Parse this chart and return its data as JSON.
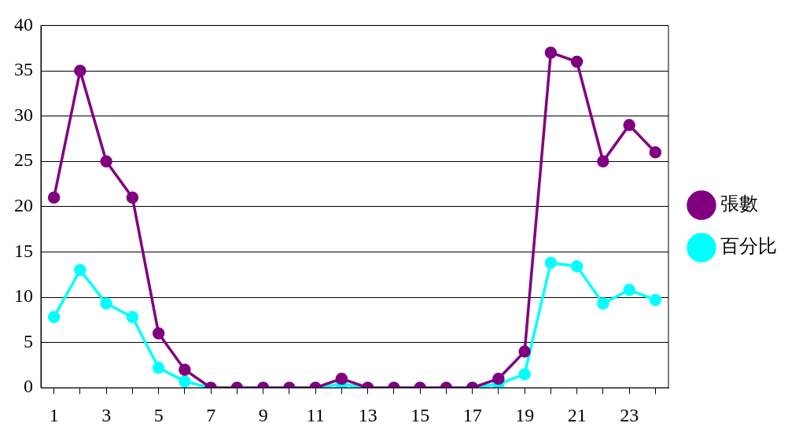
{
  "chart_data": {
    "type": "line",
    "x": [
      1,
      2,
      3,
      4,
      5,
      6,
      7,
      8,
      9,
      10,
      11,
      12,
      13,
      14,
      15,
      16,
      17,
      18,
      19,
      20,
      21,
      22,
      23,
      24
    ],
    "series": [
      {
        "name": "張數",
        "color": "#800080",
        "values": [
          21,
          35,
          25,
          21,
          6,
          2,
          0,
          0,
          0,
          0,
          0,
          1,
          0,
          0,
          0,
          0,
          0,
          1,
          4,
          37,
          36,
          25,
          29,
          26
        ]
      },
      {
        "name": "百分比",
        "color": "#00ffff",
        "values": [
          7.8,
          13.0,
          9.3,
          7.8,
          2.2,
          0.7,
          0,
          0,
          0,
          0,
          0,
          0.4,
          0,
          0,
          0,
          0,
          0,
          0.4,
          1.5,
          13.8,
          13.4,
          9.3,
          10.8,
          9.7
        ]
      }
    ],
    "xlim": [
      0.5,
      24.5
    ],
    "xticks": [
      1,
      {
        "value": 2,
        "label": null
      },
      3,
      {
        "value": 4,
        "label": null
      },
      5,
      {
        "value": 6,
        "label": null
      },
      7,
      {
        "value": 8,
        "label": null
      },
      9,
      {
        "value": 10,
        "label": null
      },
      11,
      {
        "value": 12,
        "label": null
      },
      13,
      {
        "value": 14,
        "label": null
      },
      15,
      {
        "value": 16,
        "label": null
      },
      17,
      {
        "value": 18,
        "label": null
      },
      19,
      {
        "value": 20,
        "label": null
      },
      21,
      {
        "value": 22,
        "label": null
      },
      23,
      {
        "value": 24,
        "label": null
      }
    ],
    "ylim": [
      0,
      40
    ],
    "yticks": [
      0,
      5,
      10,
      15,
      20,
      25,
      30,
      35,
      40
    ],
    "grid": "y",
    "legend": "right",
    "marker": "circle",
    "line_style": "solid"
  }
}
